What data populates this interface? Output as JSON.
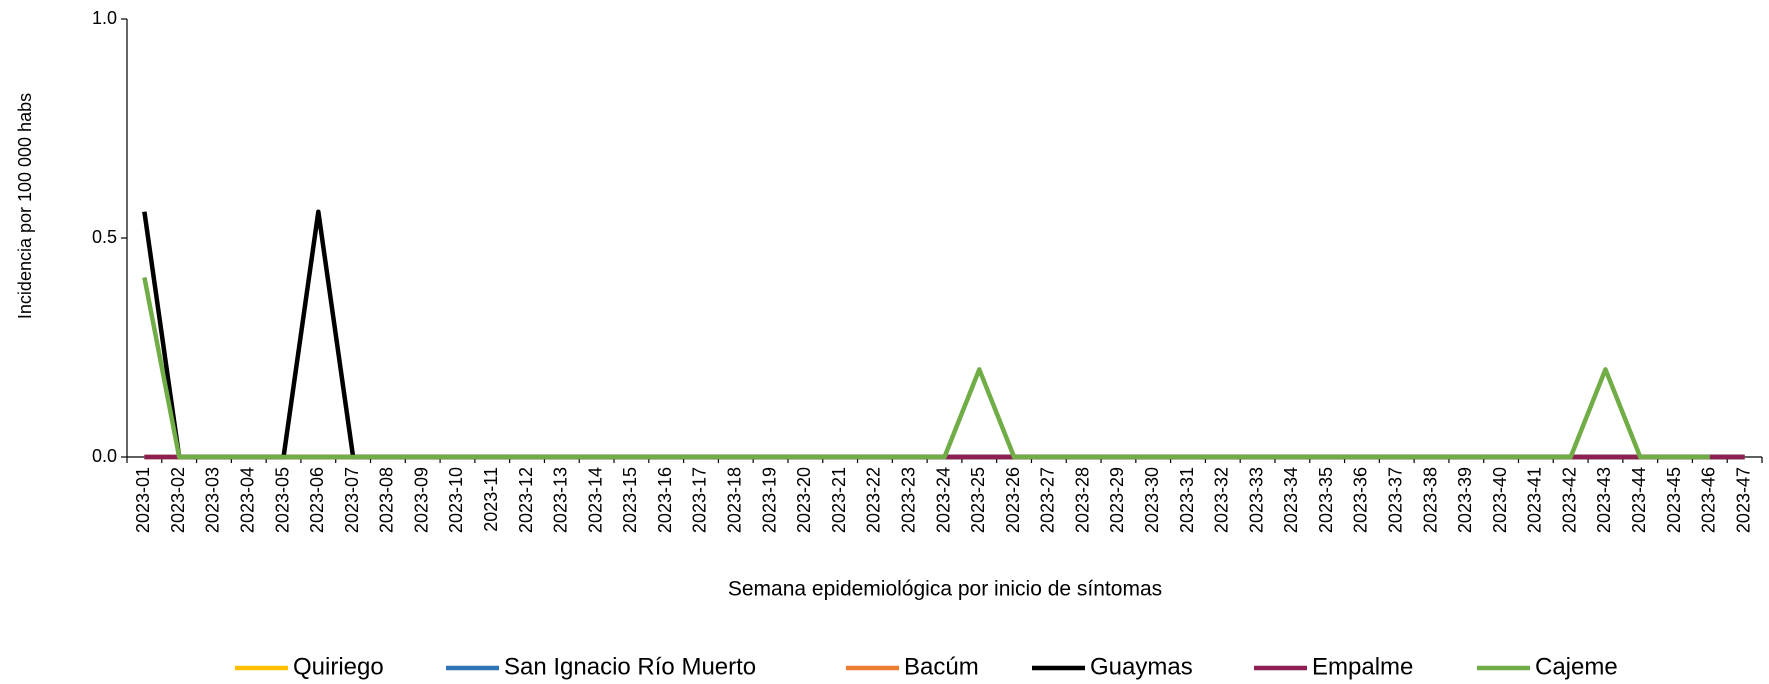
{
  "chart_data": {
    "type": "line",
    "y_label": "Incidencia por 100 000 habs",
    "x_label": "Semana epidemiológica por inicio de síntomas",
    "categories": [
      "2023-01",
      "2023-02",
      "2023-03",
      "2023-04",
      "2023-05",
      "2023-06",
      "2023-07",
      "2023-08",
      "2023-09",
      "2023-10",
      "2023-11",
      "2023-12",
      "2023-13",
      "2023-14",
      "2023-15",
      "2023-16",
      "2023-17",
      "2023-18",
      "2023-19",
      "2023-20",
      "2023-21",
      "2023-22",
      "2023-23",
      "2023-24",
      "2023-25",
      "2023-26",
      "2023-27",
      "2023-28",
      "2023-29",
      "2023-30",
      "2023-31",
      "2023-32",
      "2023-33",
      "2023-34",
      "2023-35",
      "2023-36",
      "2023-37",
      "2023-38",
      "2023-39",
      "2023-40",
      "2023-41",
      "2023-42",
      "2023-43",
      "2023-44",
      "2023-45",
      "2023-46",
      "2023-47"
    ],
    "series": [
      {
        "name": "Quiriego",
        "color": "#ffc000",
        "values": [
          0,
          0,
          0,
          0,
          0,
          0,
          0,
          0,
          0,
          0,
          0,
          0,
          0,
          0,
          0,
          0,
          0,
          0,
          0,
          0,
          0,
          0,
          0,
          0,
          0,
          0,
          0,
          0,
          0,
          0,
          0,
          0,
          0,
          0,
          0,
          0,
          0,
          0,
          0,
          0,
          0,
          0,
          0,
          0,
          0,
          0,
          0
        ]
      },
      {
        "name": "San Ignacio Río Muerto",
        "color": "#2e75b6",
        "values": [
          0,
          0,
          0,
          0,
          0,
          0,
          0,
          0,
          0,
          0,
          0,
          0,
          0,
          0,
          0,
          0,
          0,
          0,
          0,
          0,
          0,
          0,
          0,
          0,
          0,
          0,
          0,
          0,
          0,
          0,
          0,
          0,
          0,
          0,
          0,
          0,
          0,
          0,
          0,
          0,
          0,
          0,
          0,
          0,
          0,
          0,
          0
        ]
      },
      {
        "name": "Bacúm",
        "color": "#ed7d31",
        "values": [
          0,
          0,
          0,
          0,
          0,
          0,
          0,
          0,
          0,
          0,
          0,
          0,
          0,
          0,
          0,
          0,
          0,
          0,
          0,
          0,
          0,
          0,
          0,
          0,
          0,
          0,
          0,
          0,
          0,
          0,
          0,
          0,
          0,
          0,
          0,
          0,
          0,
          0,
          0,
          0,
          0,
          0,
          0,
          0,
          0,
          0,
          0
        ]
      },
      {
        "name": "Guaymas",
        "color": "#000000",
        "values": [
          0.56,
          0,
          0,
          0,
          0,
          0.56,
          0,
          0,
          0,
          0,
          0,
          0,
          0,
          0,
          0,
          0,
          0,
          0,
          0,
          0,
          0,
          0,
          0,
          0,
          0,
          0,
          0,
          0,
          0,
          0,
          0,
          0,
          0,
          0,
          0,
          0,
          0,
          0,
          0,
          0,
          0,
          0,
          0,
          0,
          0,
          0,
          0
        ]
      },
      {
        "name": "Empalme",
        "color": "#8e1f52",
        "values": [
          0,
          0,
          0,
          0,
          0,
          0,
          0,
          0,
          0,
          0,
          0,
          0,
          0,
          0,
          0,
          0,
          0,
          0,
          0,
          0,
          0,
          0,
          0,
          0,
          0,
          0,
          0,
          0,
          0,
          0,
          0,
          0,
          0,
          0,
          0,
          0,
          0,
          0,
          0,
          0,
          0,
          0,
          0,
          0,
          0,
          0,
          0
        ]
      },
      {
        "name": "Cajeme",
        "color": "#70ad47",
        "values": [
          0.41,
          0,
          0,
          0,
          0,
          0,
          0,
          0,
          0,
          0,
          0,
          0,
          0,
          0,
          0,
          0,
          0,
          0,
          0,
          0,
          0,
          0,
          0,
          0,
          0.2,
          0,
          0,
          0,
          0,
          0,
          0,
          0,
          0,
          0,
          0,
          0,
          0,
          0,
          0,
          0,
          0,
          0,
          0.2,
          0,
          0,
          0,
          null
        ]
      }
    ],
    "ylim": [
      0,
      1
    ],
    "yticks": [
      {
        "value": 0,
        "label": "0.0"
      },
      0.5,
      {
        "value": 1,
        "label": "1.0"
      }
    ],
    "grid": false
  }
}
